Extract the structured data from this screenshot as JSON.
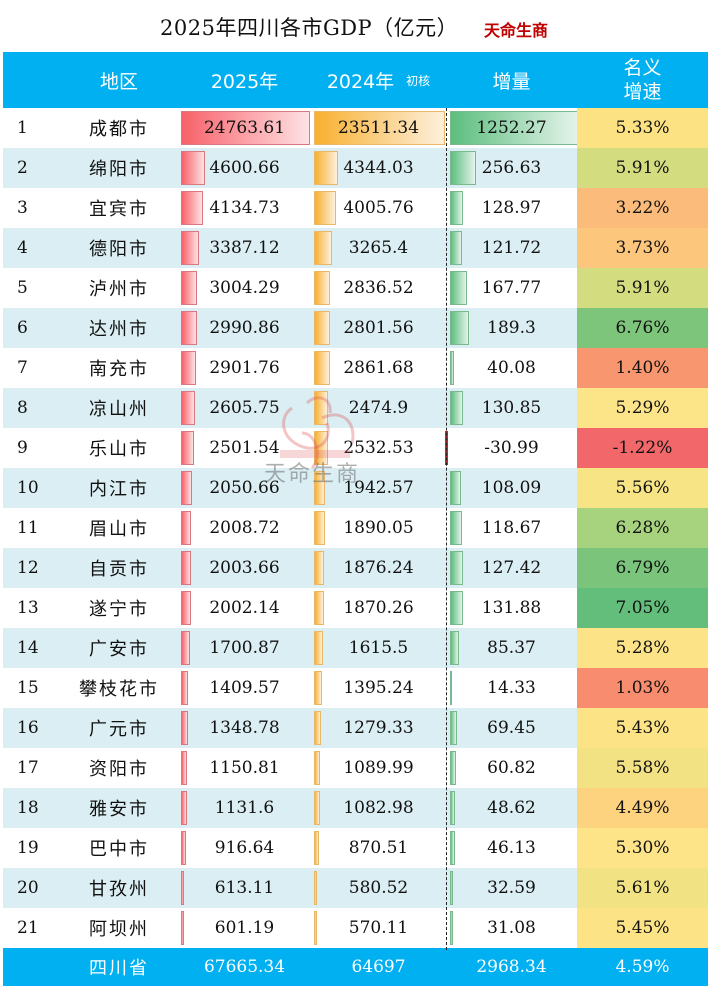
{
  "title": {
    "main": "2025年四川各市GDP（亿元）",
    "brand": "天命生商"
  },
  "header": {
    "region": "地区",
    "y2025": "2025年",
    "y2024": "2024年",
    "y2024_note": "初核",
    "increment": "增量",
    "growth_line1": "名义",
    "growth_line2": "增速"
  },
  "rows": [
    {
      "rank": "1",
      "name": "成都市",
      "v2025": "24763.61",
      "v2024": "23511.34",
      "inc": "1252.27",
      "growth": "5.33%",
      "gcolor": "#fde283"
    },
    {
      "rank": "2",
      "name": "绵阳市",
      "v2025": "4600.66",
      "v2024": "4344.03",
      "inc": "256.63",
      "growth": "5.91%",
      "gcolor": "#d4dc80"
    },
    {
      "rank": "3",
      "name": "宜宾市",
      "v2025": "4134.73",
      "v2024": "4005.76",
      "inc": "128.97",
      "growth": "3.22%",
      "gcolor": "#fbbc7b"
    },
    {
      "rank": "4",
      "name": "德阳市",
      "v2025": "3387.12",
      "v2024": "3265.4",
      "inc": "121.72",
      "growth": "3.73%",
      "gcolor": "#fcc67d"
    },
    {
      "rank": "5",
      "name": "泸州市",
      "v2025": "3004.29",
      "v2024": "2836.52",
      "inc": "167.77",
      "growth": "5.91%",
      "gcolor": "#d4dc80"
    },
    {
      "rank": "6",
      "name": "达州市",
      "v2025": "2990.86",
      "v2024": "2801.56",
      "inc": "189.3",
      "growth": "6.76%",
      "gcolor": "#7ec57c"
    },
    {
      "rank": "7",
      "name": "南充市",
      "v2025": "2901.76",
      "v2024": "2861.68",
      "inc": "40.08",
      "growth": "1.40%",
      "gcolor": "#f7966f"
    },
    {
      "rank": "8",
      "name": "凉山州",
      "v2025": "2605.75",
      "v2024": "2474.9",
      "inc": "130.85",
      "growth": "5.29%",
      "gcolor": "#fce489"
    },
    {
      "rank": "9",
      "name": "乐山市",
      "v2025": "2501.54",
      "v2024": "2532.53",
      "inc": "-30.99",
      "growth": "-1.22%",
      "gcolor": "#f2686a"
    },
    {
      "rank": "10",
      "name": "内江市",
      "v2025": "2050.66",
      "v2024": "1942.57",
      "inc": "108.09",
      "growth": "5.56%",
      "gcolor": "#f6e485"
    },
    {
      "rank": "11",
      "name": "眉山市",
      "v2025": "2008.72",
      "v2024": "1890.05",
      "inc": "118.67",
      "growth": "6.28%",
      "gcolor": "#a8d37e"
    },
    {
      "rank": "12",
      "name": "自贡市",
      "v2025": "2003.66",
      "v2024": "1876.24",
      "inc": "127.42",
      "growth": "6.79%",
      "gcolor": "#7bc47b"
    },
    {
      "rank": "13",
      "name": "遂宁市",
      "v2025": "2002.14",
      "v2024": "1870.26",
      "inc": "131.88",
      "growth": "7.05%",
      "gcolor": "#63be7b"
    },
    {
      "rank": "14",
      "name": "广安市",
      "v2025": "1700.87",
      "v2024": "1615.5",
      "inc": "85.37",
      "growth": "5.28%",
      "gcolor": "#fde388"
    },
    {
      "rank": "15",
      "name": "攀枝花市",
      "v2025": "1409.57",
      "v2024": "1395.24",
      "inc": "14.33",
      "growth": "1.03%",
      "gcolor": "#f88c6e"
    },
    {
      "rank": "16",
      "name": "广元市",
      "v2025": "1348.78",
      "v2024": "1279.33",
      "inc": "69.45",
      "growth": "5.43%",
      "gcolor": "#fce386"
    },
    {
      "rank": "17",
      "name": "资阳市",
      "v2025": "1150.81",
      "v2024": "1089.99",
      "inc": "60.82",
      "growth": "5.58%",
      "gcolor": "#f3e284"
    },
    {
      "rank": "18",
      "name": "雅安市",
      "v2025": "1131.6",
      "v2024": "1082.98",
      "inc": "48.62",
      "growth": "4.49%",
      "gcolor": "#fdd380"
    },
    {
      "rank": "19",
      "name": "巴中市",
      "v2025": "916.64",
      "v2024": "870.51",
      "inc": "46.13",
      "growth": "5.30%",
      "gcolor": "#fde488"
    },
    {
      "rank": "20",
      "name": "甘孜州",
      "v2025": "613.11",
      "v2024": "580.52",
      "inc": "32.59",
      "growth": "5.61%",
      "gcolor": "#f1e283"
    },
    {
      "rank": "21",
      "name": "阿坝州",
      "v2025": "601.19",
      "v2024": "570.11",
      "inc": "31.08",
      "growth": "5.45%",
      "gcolor": "#fce386"
    }
  ],
  "total": {
    "name": "四川省",
    "v2025": "67665.34",
    "v2024": "64697",
    "inc": "2968.34",
    "growth": "4.59%"
  },
  "watermark": {
    "text": "天命生商"
  },
  "colors": {
    "header_bg": "#00b0f0",
    "row_alt_bg": "#daeef3",
    "bar_2025": "#f8616a",
    "bar_2024": "#f8b030",
    "bar_increment": "#5cbe7e",
    "bar_negative": "#c0262e",
    "brand_red": "#c00000"
  },
  "chart_data": {
    "type": "table",
    "title": "2025年四川各市GDP（亿元）",
    "columns": [
      "地区",
      "2025年",
      "2024年 初核",
      "增量",
      "名义增速"
    ],
    "categories": [
      "成都市",
      "绵阳市",
      "宜宾市",
      "德阳市",
      "泸州市",
      "达州市",
      "南充市",
      "凉山州",
      "乐山市",
      "内江市",
      "眉山市",
      "自贡市",
      "遂宁市",
      "广安市",
      "攀枝花市",
      "广元市",
      "资阳市",
      "雅安市",
      "巴中市",
      "甘孜州",
      "阿坝州"
    ],
    "series": [
      {
        "name": "2025年",
        "values": [
          24763.61,
          4600.66,
          4134.73,
          3387.12,
          3004.29,
          2990.86,
          2901.76,
          2605.75,
          2501.54,
          2050.66,
          2008.72,
          2003.66,
          2002.14,
          1700.87,
          1409.57,
          1348.78,
          1150.81,
          1131.6,
          916.64,
          613.11,
          601.19
        ]
      },
      {
        "name": "2024年 初核",
        "values": [
          23511.34,
          4344.03,
          4005.76,
          3265.4,
          2836.52,
          2801.56,
          2861.68,
          2474.9,
          2532.53,
          1942.57,
          1890.05,
          1876.24,
          1870.26,
          1615.5,
          1395.24,
          1279.33,
          1089.99,
          1082.98,
          870.51,
          580.52,
          570.11
        ]
      },
      {
        "name": "增量",
        "values": [
          1252.27,
          256.63,
          128.97,
          121.72,
          167.77,
          189.3,
          40.08,
          130.85,
          -30.99,
          108.09,
          118.67,
          127.42,
          131.88,
          85.37,
          14.33,
          69.45,
          60.82,
          48.62,
          46.13,
          32.59,
          31.08
        ]
      },
      {
        "name": "名义增速(%)",
        "values": [
          5.33,
          5.91,
          3.22,
          3.73,
          5.91,
          6.76,
          1.4,
          5.29,
          -1.22,
          5.56,
          6.28,
          6.79,
          7.05,
          5.28,
          1.03,
          5.43,
          5.58,
          4.49,
          5.3,
          5.61,
          5.45
        ]
      }
    ],
    "total": {
      "name": "四川省",
      "2025年": 67665.34,
      "2024年": 64697,
      "增量": 2968.34,
      "名义增速(%)": 4.59
    },
    "notes": "In-cell data bars for 2025, 2024, and increment columns; color scale (red-yellow-green) on growth rate column."
  }
}
